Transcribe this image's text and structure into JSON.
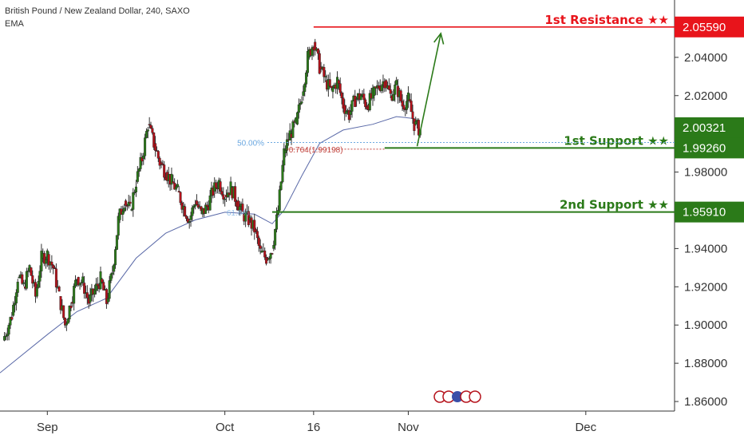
{
  "header": {
    "title": "British Pound / New Zealand Dollar, 240, SAXO",
    "indicator": "EMA"
  },
  "colors": {
    "resistance": "#e8141b",
    "support": "#2b7a19",
    "bull_candle": "#2b7a19",
    "bear_candle": "#b5121b",
    "ema": "#5b6aa8",
    "fib_50": "#6aa7e0",
    "fib_764": "#c2453f",
    "arrow": "#2b7a19"
  },
  "chart_data": {
    "type": "candlestick",
    "symbol": "GBPNZD",
    "timeframe": "240",
    "source": "SAXO",
    "y_axis": {
      "range": [
        1.855,
        2.07
      ],
      "ticks": [
        {
          "value": 1.86,
          "label": "1.86000"
        },
        {
          "value": 1.88,
          "label": "1.88000"
        },
        {
          "value": 1.9,
          "label": "1.90000"
        },
        {
          "value": 1.92,
          "label": "1.92000"
        },
        {
          "value": 1.94,
          "label": "1.94000"
        },
        {
          "value": 1.98,
          "label": "1.98000"
        },
        {
          "value": 2.02,
          "label": "2.02000"
        },
        {
          "value": 2.04,
          "label": "2.04000"
        }
      ]
    },
    "x_axis": {
      "ticks": [
        {
          "day": 0,
          "label": "Sep"
        },
        {
          "day": 30,
          "label": "Oct"
        },
        {
          "day": 45,
          "label": "16"
        },
        {
          "day": 61,
          "label": "Nov"
        },
        {
          "day": 91,
          "label": "Dec"
        }
      ],
      "range_days": [
        -8,
        106
      ]
    },
    "levels": [
      {
        "name": "1st Resistance ★★",
        "value": 2.0559,
        "label": "2.05590",
        "kind": "resistance",
        "from_day": 45
      },
      {
        "name": "1st Support ★★",
        "value": 1.9926,
        "label": "1.99260",
        "kind": "support",
        "from_day": 57
      },
      {
        "name": "2nd Support ★★",
        "value": 1.9591,
        "label": "1.95910",
        "kind": "support",
        "from_day": 38
      }
    ],
    "current_price": {
      "value": 2.00321,
      "label": "2.00321"
    },
    "fibonacci": [
      {
        "label": "50.00%",
        "value": 1.9955,
        "kind": "fib_50"
      },
      {
        "label": "0.764(1.99198)",
        "value": 1.99198,
        "kind": "fib_764"
      },
      {
        "label": "61.8%",
        "value": 1.9585,
        "kind": "fib_partial"
      }
    ],
    "projection_arrow": {
      "from": {
        "day": 62.5,
        "value": 1.9935
      },
      "to": {
        "day": 66.5,
        "value": 2.0525
      }
    },
    "closes": [
      {
        "day": -7.5,
        "value": 1.892
      },
      {
        "day": -6,
        "value": 1.905
      },
      {
        "day": -5,
        "value": 1.925
      },
      {
        "day": -4,
        "value": 1.92
      },
      {
        "day": -3,
        "value": 1.93
      },
      {
        "day": -2,
        "value": 1.915
      },
      {
        "day": -1,
        "value": 1.935
      },
      {
        "day": 0,
        "value": 1.937
      },
      {
        "day": 1,
        "value": 1.93
      },
      {
        "day": 2,
        "value": 1.915
      },
      {
        "day": 3,
        "value": 1.9
      },
      {
        "day": 4,
        "value": 1.912
      },
      {
        "day": 5,
        "value": 1.925
      },
      {
        "day": 6,
        "value": 1.922
      },
      {
        "day": 7,
        "value": 1.912
      },
      {
        "day": 8,
        "value": 1.918
      },
      {
        "day": 9,
        "value": 1.924
      },
      {
        "day": 10,
        "value": 1.912
      },
      {
        "day": 11,
        "value": 1.928
      },
      {
        "day": 12,
        "value": 1.955
      },
      {
        "day": 13,
        "value": 1.965
      },
      {
        "day": 14,
        "value": 1.96
      },
      {
        "day": 15,
        "value": 1.975
      },
      {
        "day": 16,
        "value": 1.987
      },
      {
        "day": 17,
        "value": 2.005
      },
      {
        "day": 18,
        "value": 1.995
      },
      {
        "day": 19,
        "value": 1.985
      },
      {
        "day": 20,
        "value": 1.98
      },
      {
        "day": 21,
        "value": 1.975
      },
      {
        "day": 22,
        "value": 1.97
      },
      {
        "day": 23,
        "value": 1.962
      },
      {
        "day": 24,
        "value": 1.955
      },
      {
        "day": 25,
        "value": 1.965
      },
      {
        "day": 26,
        "value": 1.958
      },
      {
        "day": 27,
        "value": 1.962
      },
      {
        "day": 28,
        "value": 1.97
      },
      {
        "day": 29,
        "value": 1.975
      },
      {
        "day": 30,
        "value": 1.968
      },
      {
        "day": 31,
        "value": 1.972
      },
      {
        "day": 32,
        "value": 1.965
      },
      {
        "day": 33,
        "value": 1.958
      },
      {
        "day": 34,
        "value": 1.955
      },
      {
        "day": 35,
        "value": 1.95
      },
      {
        "day": 36,
        "value": 1.938
      },
      {
        "day": 37,
        "value": 1.935
      },
      {
        "day": 38,
        "value": 1.94
      },
      {
        "day": 39,
        "value": 1.96
      },
      {
        "day": 40,
        "value": 1.99
      },
      {
        "day": 41,
        "value": 2.0
      },
      {
        "day": 42,
        "value": 2.005
      },
      {
        "day": 43,
        "value": 2.02
      },
      {
        "day": 44,
        "value": 2.04
      },
      {
        "day": 45,
        "value": 2.048
      },
      {
        "day": 46,
        "value": 2.035
      },
      {
        "day": 47,
        "value": 2.028
      },
      {
        "day": 48,
        "value": 2.022
      },
      {
        "day": 49,
        "value": 2.028
      },
      {
        "day": 50,
        "value": 2.015
      },
      {
        "day": 51,
        "value": 2.01
      },
      {
        "day": 52,
        "value": 2.018
      },
      {
        "day": 53,
        "value": 2.02
      },
      {
        "day": 54,
        "value": 2.015
      },
      {
        "day": 55,
        "value": 2.02
      },
      {
        "day": 56,
        "value": 2.025
      },
      {
        "day": 57,
        "value": 2.028
      },
      {
        "day": 58,
        "value": 2.02
      },
      {
        "day": 59,
        "value": 2.025
      },
      {
        "day": 60,
        "value": 2.015
      },
      {
        "day": 61,
        "value": 2.018
      },
      {
        "day": 62,
        "value": 2.005
      },
      {
        "day": 63,
        "value": 2.002
      }
    ],
    "ema_line": [
      {
        "day": -8,
        "value": 1.875
      },
      {
        "day": 0,
        "value": 1.895
      },
      {
        "day": 5,
        "value": 1.907
      },
      {
        "day": 10,
        "value": 1.914
      },
      {
        "day": 15,
        "value": 1.935
      },
      {
        "day": 20,
        "value": 1.948
      },
      {
        "day": 25,
        "value": 1.955
      },
      {
        "day": 30,
        "value": 1.959
      },
      {
        "day": 35,
        "value": 1.958
      },
      {
        "day": 38,
        "value": 1.953
      },
      {
        "day": 40,
        "value": 1.96
      },
      {
        "day": 43,
        "value": 1.978
      },
      {
        "day": 46,
        "value": 1.995
      },
      {
        "day": 50,
        "value": 2.002
      },
      {
        "day": 55,
        "value": 2.005
      },
      {
        "day": 59,
        "value": 2.009
      },
      {
        "day": 62,
        "value": 2.008
      }
    ]
  }
}
